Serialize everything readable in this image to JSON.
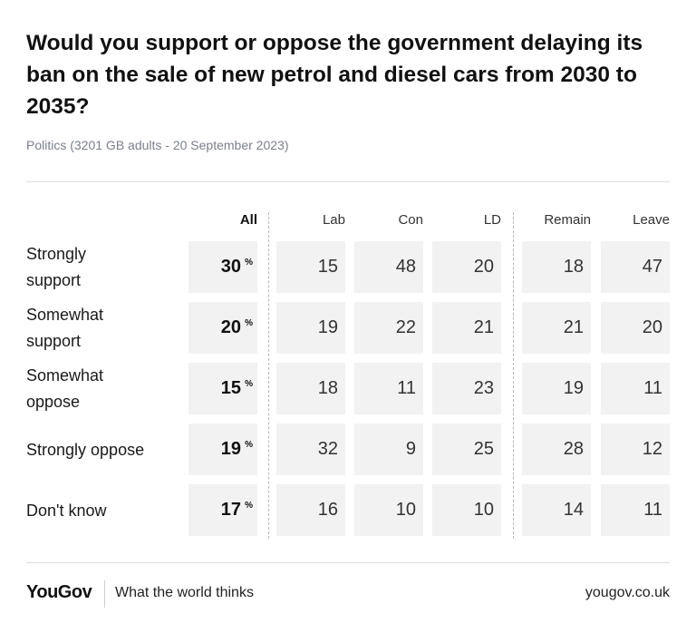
{
  "title": "Would you support or oppose the government delaying its ban on the sale of new petrol and diesel cars from 2030 to 2035?",
  "subtitle": "Politics (3201 GB adults - 20 September 2023)",
  "footer": {
    "brand": "YouGov",
    "tagline": "What the world thinks",
    "url": "yougov.co.uk"
  },
  "chart_data": {
    "type": "table",
    "columns": [
      "All",
      "Lab",
      "Con",
      "LD",
      "Remain",
      "Leave"
    ],
    "unit": "%",
    "rows": [
      {
        "label": "Strongly support",
        "values": [
          30,
          15,
          48,
          20,
          18,
          47
        ]
      },
      {
        "label": "Somewhat support",
        "values": [
          20,
          19,
          22,
          21,
          21,
          20
        ]
      },
      {
        "label": "Somewhat oppose",
        "values": [
          15,
          18,
          11,
          23,
          19,
          11
        ]
      },
      {
        "label": "Strongly oppose",
        "values": [
          19,
          32,
          9,
          25,
          28,
          12
        ]
      },
      {
        "label": "Don't know",
        "values": [
          17,
          16,
          10,
          10,
          14,
          11
        ]
      }
    ]
  }
}
